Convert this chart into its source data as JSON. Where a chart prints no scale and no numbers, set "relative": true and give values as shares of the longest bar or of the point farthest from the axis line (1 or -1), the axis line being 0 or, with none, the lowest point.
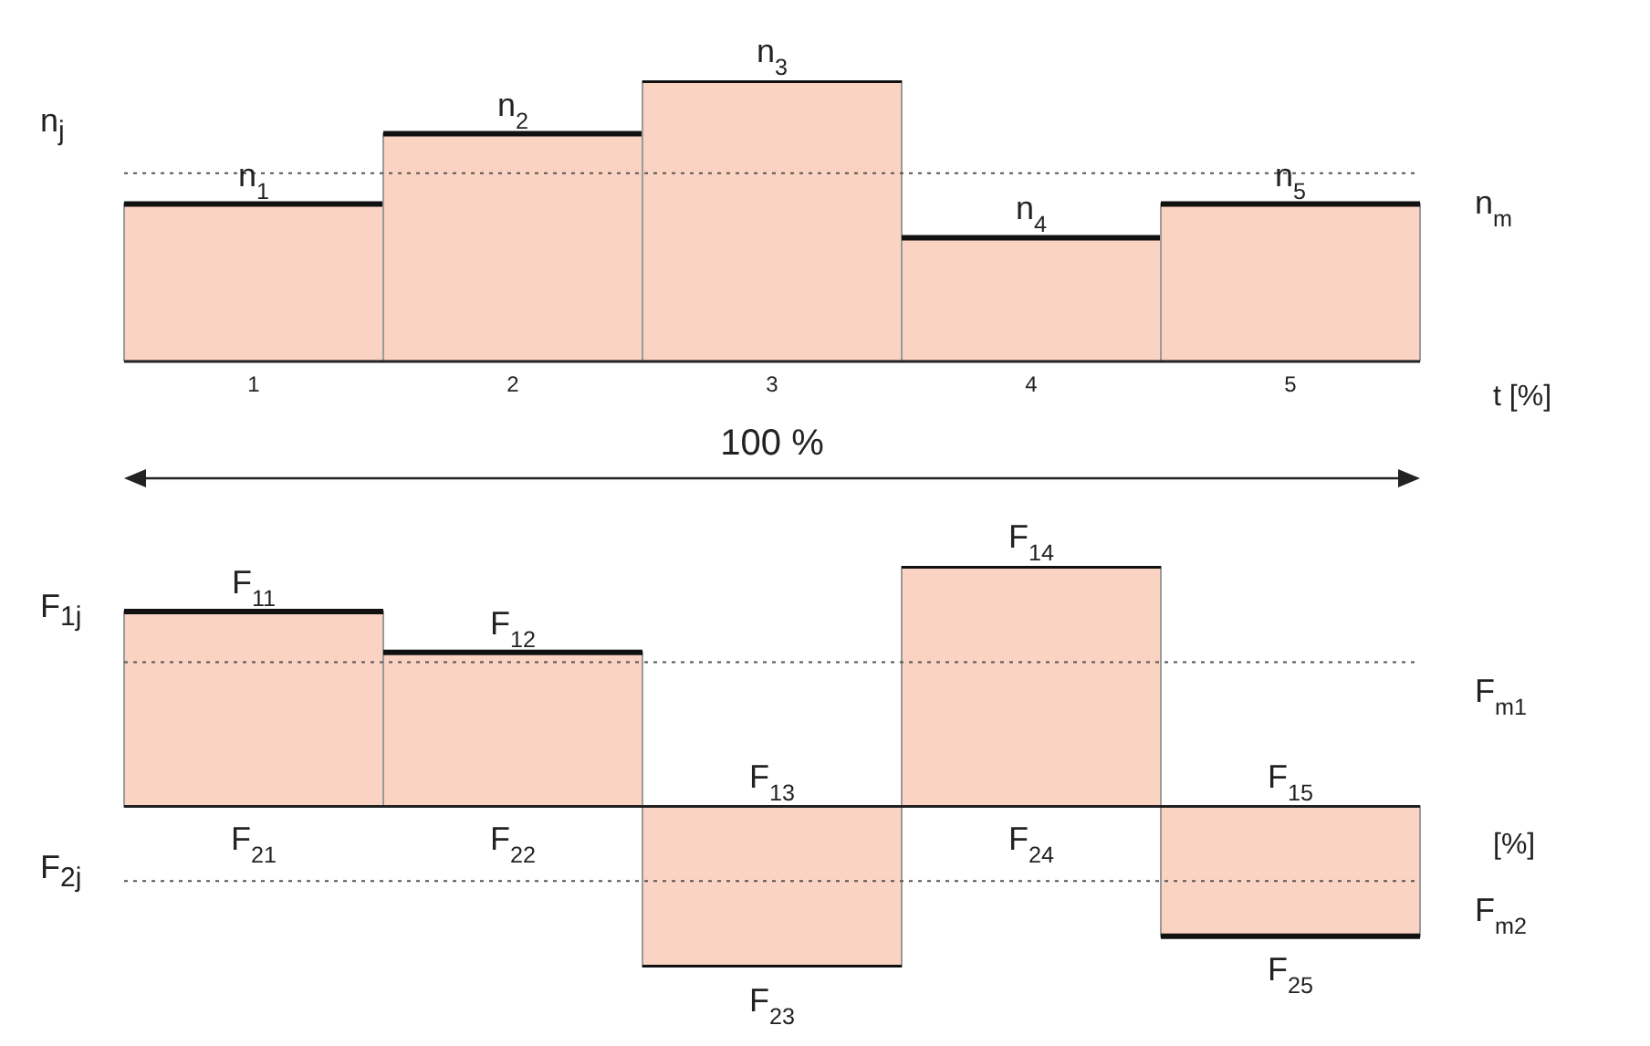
{
  "chart_data": [
    {
      "type": "bar",
      "relative": true,
      "stacked": true,
      "xlabel": "t [%]",
      "ylabel": "n$_{j}$",
      "categories": [
        "1",
        "2",
        "3",
        "4",
        "5"
      ],
      "tick_labels": "x",
      "grid": false,
      "legend": false,
      "series": [
        {
          "color": "#fbd3c3",
          "values": [
            0.56,
            0.81,
            1,
            0.44,
            0.56
          ]
        }
      ],
      "ref_lines": [
        {
          "axis": "y",
          "value": 0.67,
          "label": "n$_{m}$",
          "line_style": "dotted"
        }
      ],
      "annotations": [
        {
          "text": "n$_{1}$",
          "x": "1",
          "y": 0.56
        },
        {
          "text": "n$_{2}$",
          "x": "2",
          "y": 0.81
        },
        {
          "text": "n$_{3}$",
          "x": "3",
          "y": 1
        },
        {
          "text": "n$_{4}$",
          "x": "4",
          "y": 0.44
        },
        {
          "text": "n$_{5}$",
          "x": "5",
          "y": 0.56
        },
        "100 %"
      ]
    },
    {
      "type": "bar",
      "relative": true,
      "stacked": true,
      "xlabel": "[%]",
      "ylabel": "F$_{1j}$",
      "categories": [
        "1",
        "2",
        "3",
        "4",
        "5"
      ],
      "tick_labels": false,
      "grid": false,
      "legend": false,
      "series": [
        {
          "color": "#fbd3c3",
          "values": [
            0.81,
            0.64,
            null,
            1,
            null
          ]
        },
        {
          "color": "#fbd3c3",
          "values": [
            null,
            null,
            -0.67,
            null,
            -0.54
          ]
        }
      ],
      "ref_lines": [
        {
          "axis": "y",
          "value": 0.6,
          "label": "F$_{m1}$",
          "line_style": "dotted"
        },
        {
          "axis": "y",
          "value": -0.31,
          "label": "F$_{m2}$",
          "line_style": "dotted"
        }
      ],
      "annotations": [
        {
          "text": "F$_{11}$",
          "x": "1",
          "y": 0.81
        },
        {
          "text": "F$_{12}$",
          "x": "2",
          "y": 0.64
        },
        {
          "text": "F$_{13}$",
          "x": "3",
          "y": 0
        },
        {
          "text": "F$_{14}$",
          "x": "4",
          "y": 1
        },
        {
          "text": "F$_{15}$",
          "x": "5",
          "y": 0
        },
        {
          "text": "F$_{21}$",
          "x": "1",
          "y": 0
        },
        {
          "text": "F$_{22}$",
          "x": "2",
          "y": 0
        },
        {
          "text": "F$_{23}$",
          "x": "3",
          "y": -0.67
        },
        {
          "text": "F$_{24}$",
          "x": "4",
          "y": 0
        },
        {
          "text": "F$_{25}$",
          "x": "5",
          "y": -0.54
        },
        "F$_{2j}$"
      ]
    }
  ]
}
